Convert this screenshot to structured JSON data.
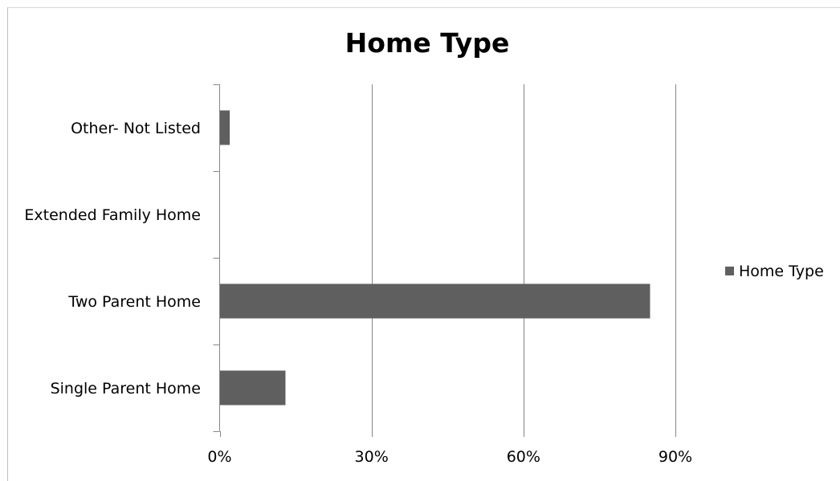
{
  "chart_data": {
    "type": "bar",
    "orientation": "horizontal",
    "title": "Home Type",
    "xlabel": "",
    "ylabel": "",
    "categories": [
      "Single Parent Home",
      "Two Parent Home",
      "Extended Family Home",
      "Other- Not Listed"
    ],
    "series": [
      {
        "name": "Home Type",
        "values": [
          13,
          85,
          0,
          2
        ],
        "color": "#5f5f5f"
      }
    ],
    "xlim": [
      0,
      90
    ],
    "xticks": [
      0,
      30,
      60,
      90
    ],
    "xtick_labels": [
      "0%",
      "30%",
      "60%",
      "90%"
    ],
    "value_unit": "%",
    "grid": "vertical major gridlines",
    "legend": "right"
  }
}
